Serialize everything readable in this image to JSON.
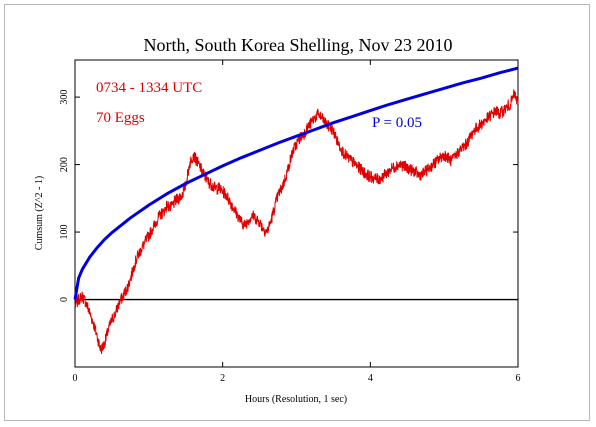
{
  "chart_data": {
    "type": "line",
    "title": "North, South Korea Shelling, Nov 23 2010",
    "xlabel": "Hours (Resolution, 1 sec)",
    "ylabel": "Cumsum (Z^2 - 1)",
    "xlim": [
      0,
      6
    ],
    "ylim": [
      -100,
      355
    ],
    "x_ticks": [
      0,
      2,
      4,
      6
    ],
    "y_ticks": [
      0,
      100,
      200,
      300
    ],
    "annotations": [
      "0734 - 1334 UTC",
      "70 Eggs",
      "P = 0.05"
    ],
    "zero_line": 0,
    "grid": false,
    "series": [
      {
        "color": "#e00000",
        "x": [
          0,
          0.05,
          0.1,
          0.15,
          0.2,
          0.25,
          0.3,
          0.35,
          0.4,
          0.45,
          0.5,
          0.55,
          0.6,
          0.65,
          0.7,
          0.75,
          0.8,
          0.85,
          0.9,
          0.95,
          1.0,
          1.05,
          1.1,
          1.15,
          1.2,
          1.25,
          1.3,
          1.35,
          1.4,
          1.45,
          1.5,
          1.55,
          1.6,
          1.65,
          1.7,
          1.75,
          1.8,
          1.85,
          1.9,
          1.95,
          2.0,
          2.05,
          2.1,
          2.15,
          2.2,
          2.25,
          2.3,
          2.35,
          2.4,
          2.45,
          2.5,
          2.55,
          2.6,
          2.65,
          2.7,
          2.75,
          2.8,
          2.85,
          2.9,
          2.95,
          3.0,
          3.05,
          3.1,
          3.15,
          3.2,
          3.25,
          3.3,
          3.35,
          3.4,
          3.45,
          3.5,
          3.55,
          3.6,
          3.65,
          3.7,
          3.75,
          3.8,
          3.85,
          3.9,
          3.95,
          4.0,
          4.05,
          4.1,
          4.15,
          4.2,
          4.25,
          4.3,
          4.35,
          4.4,
          4.45,
          4.5,
          4.55,
          4.6,
          4.65,
          4.7,
          4.75,
          4.8,
          4.85,
          4.9,
          4.95,
          5.0,
          5.05,
          5.1,
          5.15,
          5.2,
          5.25,
          5.3,
          5.35,
          5.4,
          5.45,
          5.5,
          5.55,
          5.6,
          5.65,
          5.7,
          5.75,
          5.8,
          5.85,
          5.9,
          5.95,
          6.0
        ],
        "y": [
          -10,
          0,
          5,
          -5,
          -20,
          -35,
          -55,
          -75,
          -65,
          -45,
          -30,
          -20,
          -5,
          5,
          15,
          30,
          50,
          65,
          75,
          85,
          95,
          105,
          115,
          125,
          130,
          140,
          135,
          145,
          150,
          155,
          170,
          200,
          215,
          205,
          195,
          185,
          175,
          170,
          165,
          165,
          160,
          155,
          145,
          135,
          125,
          115,
          110,
          118,
          125,
          120,
          115,
          105,
          100,
          115,
          135,
          155,
          165,
          180,
          200,
          220,
          230,
          240,
          245,
          255,
          262,
          270,
          275,
          268,
          260,
          255,
          250,
          235,
          225,
          215,
          210,
          205,
          200,
          195,
          190,
          185,
          182,
          180,
          178,
          180,
          185,
          190,
          195,
          198,
          200,
          198,
          195,
          192,
          190,
          185,
          185,
          190,
          195,
          200,
          205,
          210,
          215,
          210,
          205,
          212,
          220,
          225,
          230,
          240,
          250,
          255,
          260,
          265,
          270,
          275,
          280,
          275,
          280,
          285,
          290,
          305,
          290
        ]
      },
      {
        "name": "P = 0.05",
        "color": "#0000e0",
        "x": [
          0,
          0.05,
          0.1,
          0.2,
          0.3,
          0.4,
          0.5,
          0.75,
          1.0,
          1.25,
          1.5,
          1.75,
          2.0,
          2.25,
          2.5,
          2.75,
          3.0,
          3.25,
          3.5,
          3.75,
          4.0,
          4.25,
          4.5,
          4.75,
          5.0,
          5.25,
          5.5,
          5.75,
          6.0
        ],
        "y": [
          0,
          32,
          45,
          63,
          77,
          89,
          99,
          121,
          140,
          157,
          172,
          185,
          198,
          210,
          221,
          232,
          242,
          252,
          262,
          271,
          280,
          289,
          297,
          305,
          313,
          321,
          328,
          336,
          343
        ]
      }
    ]
  }
}
